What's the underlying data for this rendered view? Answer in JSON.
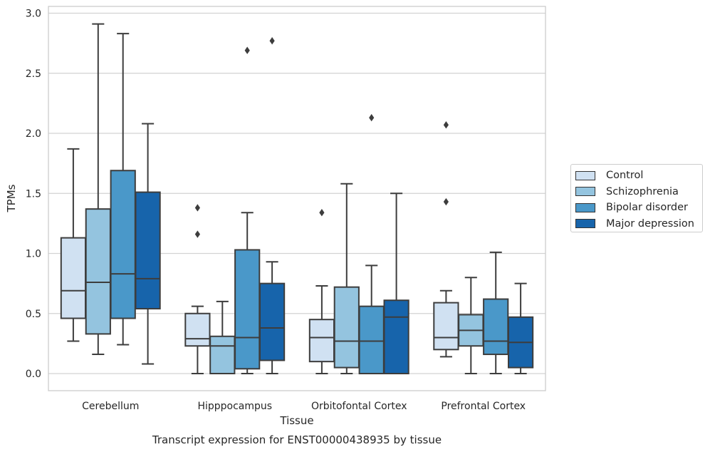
{
  "chart_data": {
    "type": "box",
    "title": "Transcript expression for ENST00000438935 by tissue",
    "xlabel": "Tissue",
    "ylabel": "TPMs",
    "ylim": [
      -0.14,
      3.06
    ],
    "yticks": [
      "0.0",
      "0.5",
      "1.0",
      "1.5",
      "2.0",
      "2.5",
      "3.0"
    ],
    "grid": true,
    "legend_position": "right",
    "categories": [
      "Cerebellum",
      "Hipppocampus",
      "Orbitofontal Cortex",
      "Prefrontal Cortex"
    ],
    "series": [
      {
        "name": "Control",
        "color": "#d0e1f2",
        "boxes": [
          {
            "whisker_low": 0.27,
            "q1": 0.46,
            "median": 0.69,
            "q3": 1.13,
            "whisker_high": 1.87,
            "outliers": []
          },
          {
            "whisker_low": 0.0,
            "q1": 0.23,
            "median": 0.29,
            "q3": 0.5,
            "whisker_high": 0.56,
            "outliers": [
              1.16,
              1.38
            ]
          },
          {
            "whisker_low": 0.0,
            "q1": 0.1,
            "median": 0.3,
            "q3": 0.45,
            "whisker_high": 0.73,
            "outliers": [
              1.34
            ]
          },
          {
            "whisker_low": 0.14,
            "q1": 0.2,
            "median": 0.3,
            "q3": 0.59,
            "whisker_high": 0.69,
            "outliers": [
              1.43,
              2.07
            ]
          }
        ]
      },
      {
        "name": "Schizophrenia",
        "color": "#94c4df",
        "boxes": [
          {
            "whisker_low": 0.16,
            "q1": 0.33,
            "median": 0.76,
            "q3": 1.37,
            "whisker_high": 2.91,
            "outliers": []
          },
          {
            "whisker_low": 0.0,
            "q1": 0.0,
            "median": 0.23,
            "q3": 0.31,
            "whisker_high": 0.6,
            "outliers": []
          },
          {
            "whisker_low": 0.0,
            "q1": 0.05,
            "median": 0.27,
            "q3": 0.72,
            "whisker_high": 1.58,
            "outliers": []
          },
          {
            "whisker_low": 0.0,
            "q1": 0.23,
            "median": 0.36,
            "q3": 0.49,
            "whisker_high": 0.8,
            "outliers": []
          }
        ]
      },
      {
        "name": "Bipolar disorder",
        "color": "#4a98c9",
        "boxes": [
          {
            "whisker_low": 0.24,
            "q1": 0.46,
            "median": 0.83,
            "q3": 1.69,
            "whisker_high": 2.83,
            "outliers": []
          },
          {
            "whisker_low": 0.0,
            "q1": 0.04,
            "median": 0.3,
            "q3": 1.03,
            "whisker_high": 1.34,
            "outliers": [
              2.69
            ]
          },
          {
            "whisker_low": 0.0,
            "q1": 0.0,
            "median": 0.27,
            "q3": 0.56,
            "whisker_high": 0.9,
            "outliers": [
              2.13
            ]
          },
          {
            "whisker_low": 0.0,
            "q1": 0.16,
            "median": 0.27,
            "q3": 0.62,
            "whisker_high": 1.01,
            "outliers": []
          }
        ]
      },
      {
        "name": "Major depression",
        "color": "#1764ab",
        "boxes": [
          {
            "whisker_low": 0.08,
            "q1": 0.54,
            "median": 0.79,
            "q3": 1.51,
            "whisker_high": 2.08,
            "outliers": []
          },
          {
            "whisker_low": 0.0,
            "q1": 0.11,
            "median": 0.38,
            "q3": 0.75,
            "whisker_high": 0.93,
            "outliers": [
              2.77
            ]
          },
          {
            "whisker_low": 0.0,
            "q1": 0.0,
            "median": 0.47,
            "q3": 0.61,
            "whisker_high": 1.5,
            "outliers": []
          },
          {
            "whisker_low": 0.0,
            "q1": 0.05,
            "median": 0.26,
            "q3": 0.47,
            "whisker_high": 0.75,
            "outliers": []
          }
        ]
      }
    ]
  }
}
